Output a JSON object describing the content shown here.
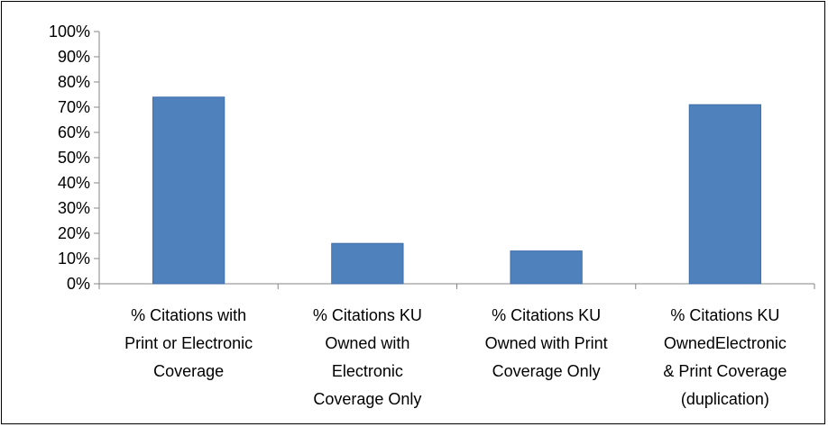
{
  "chart_data": {
    "type": "bar",
    "categories": [
      [
        "% Citations with",
        "Print or Electronic",
        "Coverage"
      ],
      [
        "% Citations KU",
        "Owned with",
        "Electronic",
        "Coverage Only"
      ],
      [
        "% Citations KU",
        "Owned with Print",
        "Coverage Only"
      ],
      [
        "% Citations KU",
        "OwnedElectronic",
        "& Print Coverage",
        "(duplication)"
      ]
    ],
    "values": [
      74,
      16,
      13,
      71
    ],
    "ylim": [
      0,
      100
    ],
    "yticks": [
      0,
      10,
      20,
      30,
      40,
      50,
      60,
      70,
      80,
      90,
      100
    ],
    "ytick_labels": [
      "0%",
      "10%",
      "20%",
      "30%",
      "40%",
      "50%",
      "60%",
      "70%",
      "80%",
      "90%",
      "100%"
    ],
    "title": "",
    "xlabel": "",
    "ylabel": "",
    "grid": false,
    "legend": false,
    "bar_color": "#4f81bd",
    "bar_border_color": "#3f6fa8"
  }
}
